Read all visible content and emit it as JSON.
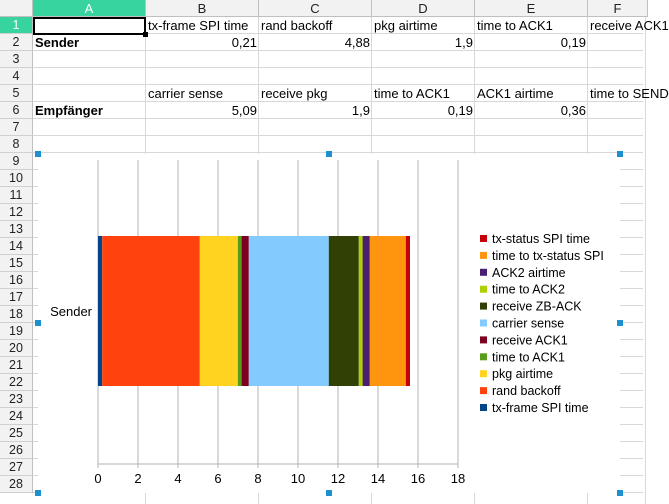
{
  "spreadsheet": {
    "columns": [
      "A",
      "B",
      "C",
      "D",
      "E",
      "F"
    ],
    "selected_column": "A",
    "rows": [
      "1",
      "2",
      "3",
      "4",
      "5",
      "6",
      "7",
      "8",
      "9",
      "10",
      "11",
      "12",
      "13",
      "14",
      "15",
      "16",
      "17",
      "18",
      "19",
      "20",
      "21",
      "22",
      "23",
      "24",
      "25",
      "26",
      "27",
      "28"
    ],
    "selected_row": "1",
    "cells": {
      "B1": "tx-frame SPI time",
      "C1": "rand backoff",
      "D1": "pkg airtime",
      "E1": "time to ACK1",
      "F1": "receive ACK1",
      "A2": "Sender",
      "B2": "0,21",
      "C2": "4,88",
      "D2": "1,9",
      "E2": "0,19",
      "B5": "carrier sense",
      "C5": "receive pkg",
      "D5": "time to ACK1",
      "E5": "ACK1 airtime",
      "F5": "time to SEND",
      "A6": "Empfänger",
      "B6": "5,09",
      "C6": "1,9",
      "D6": "0,19",
      "E6": "0,36"
    }
  },
  "chart_data": {
    "type": "bar",
    "orientation": "horizontal",
    "stacked": true,
    "categories": [
      "Sender"
    ],
    "xlim": [
      0,
      18
    ],
    "xticks": [
      0,
      2,
      4,
      6,
      8,
      10,
      12,
      14,
      16,
      18
    ],
    "grid": true,
    "legend_position": "right",
    "series": [
      {
        "name": "tx-frame SPI time",
        "values": [
          0.21
        ],
        "color": "#004586"
      },
      {
        "name": "rand backoff",
        "values": [
          4.88
        ],
        "color": "#ff420e"
      },
      {
        "name": "pkg airtime",
        "values": [
          1.9
        ],
        "color": "#ffd320"
      },
      {
        "name": "time to ACK1",
        "values": [
          0.19
        ],
        "color": "#579d1c"
      },
      {
        "name": "receive ACK1",
        "values": [
          0.36
        ],
        "color": "#7e0021"
      },
      {
        "name": "carrier sense",
        "values": [
          4.0
        ],
        "color": "#83caff"
      },
      {
        "name": "receive ZB-ACK",
        "values": [
          1.5
        ],
        "color": "#314004"
      },
      {
        "name": "time to ACK2",
        "values": [
          0.19
        ],
        "color": "#aecf00"
      },
      {
        "name": "ACK2 airtime",
        "values": [
          0.36
        ],
        "color": "#4b1f6f"
      },
      {
        "name": "time to tx-status SPI",
        "values": [
          1.8
        ],
        "color": "#ff950e"
      },
      {
        "name": "tx-status SPI time",
        "values": [
          0.21
        ],
        "color": "#c5000b"
      }
    ]
  }
}
